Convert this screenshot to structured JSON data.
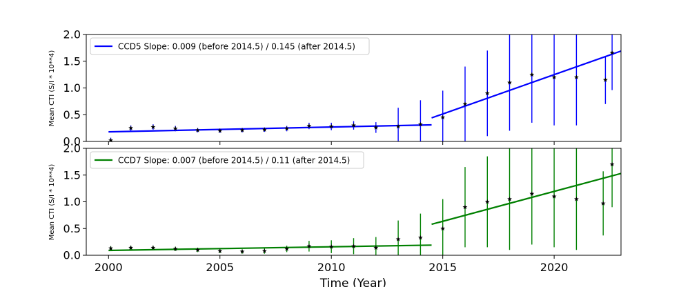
{
  "colors": {
    "ccd5": "#0000ff",
    "ccd7": "#008000",
    "points": "#000000"
  },
  "chart_data": [
    {
      "type": "scatter",
      "panel": "top",
      "xlabel": "",
      "ylabel": "Mean CTI (S/I * 10**4)",
      "xlim": [
        1999,
        2023
      ],
      "ylim": [
        0.0,
        2.0
      ],
      "yticks": [
        "0.0",
        "0.5",
        "1.0",
        "1.5",
        "2.0"
      ],
      "xticks": [],
      "legend": "upper-left",
      "series": [
        {
          "name": "CCD5 Slope: 0.009 (before 2014.5) / 0.145 (after 2014.5)",
          "kind": "fit",
          "segments": [
            {
              "x": [
                2000,
                2014.5
              ],
              "y": [
                0.18,
                0.31
              ]
            },
            {
              "x": [
                2014.5,
                2023
              ],
              "y": [
                0.44,
                1.69
              ]
            }
          ]
        }
      ],
      "sample_points": {
        "x": [
          2000.1,
          2001,
          2002,
          2003,
          2004,
          2005,
          2006,
          2007,
          2008,
          2009,
          2010,
          2011,
          2012,
          2013,
          2014,
          2015,
          2016,
          2017,
          2018,
          2019,
          2020,
          2021,
          2022.3,
          2022.6
        ],
        "y": [
          0.02,
          0.25,
          0.27,
          0.24,
          0.21,
          0.2,
          0.21,
          0.22,
          0.24,
          0.29,
          0.28,
          0.3,
          0.26,
          0.28,
          0.32,
          0.45,
          0.7,
          0.9,
          1.1,
          1.25,
          1.2,
          1.2,
          1.15,
          1.66
        ]
      },
      "error_bars": {
        "x": [
          2000.1,
          2001,
          2002,
          2003,
          2004,
          2005,
          2006,
          2007,
          2008,
          2009,
          2010,
          2011,
          2012,
          2013,
          2014,
          2015,
          2016,
          2017,
          2018,
          2019,
          2020,
          2021,
          2022.3,
          2022.6
        ],
        "err": [
          0.05,
          0.05,
          0.05,
          0.05,
          0.04,
          0.04,
          0.04,
          0.04,
          0.05,
          0.06,
          0.07,
          0.08,
          0.1,
          0.35,
          0.45,
          0.5,
          0.7,
          0.8,
          0.9,
          0.9,
          0.9,
          0.9,
          0.45,
          0.7
        ]
      }
    },
    {
      "type": "scatter",
      "panel": "bottom",
      "xlabel": "Time (Year)",
      "ylabel": "Mean CTI (S/I * 10**4)",
      "xlim": [
        1999,
        2023
      ],
      "ylim": [
        0.0,
        2.0
      ],
      "yticks": [
        "0.0",
        "0.5",
        "1.0",
        "1.5",
        "2.0"
      ],
      "xticks": [
        "2000",
        "2005",
        "2010",
        "2015",
        "2020"
      ],
      "legend": "upper-left",
      "series": [
        {
          "name": "CCD7 Slope: 0.007 (before 2014.5) / 0.11 (after 2014.5)",
          "kind": "fit",
          "segments": [
            {
              "x": [
                2000,
                2014.5
              ],
              "y": [
                0.09,
                0.19
              ]
            },
            {
              "x": [
                2014.5,
                2023
              ],
              "y": [
                0.58,
                1.53
              ]
            }
          ]
        }
      ],
      "sample_points": {
        "x": [
          2000.1,
          2001,
          2002,
          2003,
          2004,
          2005,
          2006,
          2007,
          2008,
          2009,
          2010,
          2011,
          2012,
          2013,
          2014,
          2015,
          2016,
          2017,
          2018,
          2019,
          2020,
          2021,
          2022.2,
          2022.6
        ],
        "y": [
          0.13,
          0.14,
          0.14,
          0.12,
          0.1,
          0.08,
          0.07,
          0.08,
          0.12,
          0.17,
          0.16,
          0.17,
          0.14,
          0.3,
          0.33,
          0.5,
          0.9,
          1.0,
          1.05,
          1.15,
          1.1,
          1.05,
          0.97,
          1.7
        ]
      },
      "error_bars": {
        "x": [
          2000.1,
          2001,
          2002,
          2003,
          2004,
          2005,
          2006,
          2007,
          2008,
          2009,
          2010,
          2011,
          2012,
          2013,
          2014,
          2015,
          2016,
          2017,
          2018,
          2019,
          2020,
          2021,
          2022.2,
          2022.6
        ],
        "err": [
          0.04,
          0.04,
          0.04,
          0.04,
          0.04,
          0.04,
          0.04,
          0.05,
          0.06,
          0.1,
          0.12,
          0.15,
          0.2,
          0.35,
          0.45,
          0.55,
          0.75,
          0.85,
          0.95,
          0.95,
          0.95,
          0.95,
          0.6,
          0.8
        ]
      }
    }
  ]
}
